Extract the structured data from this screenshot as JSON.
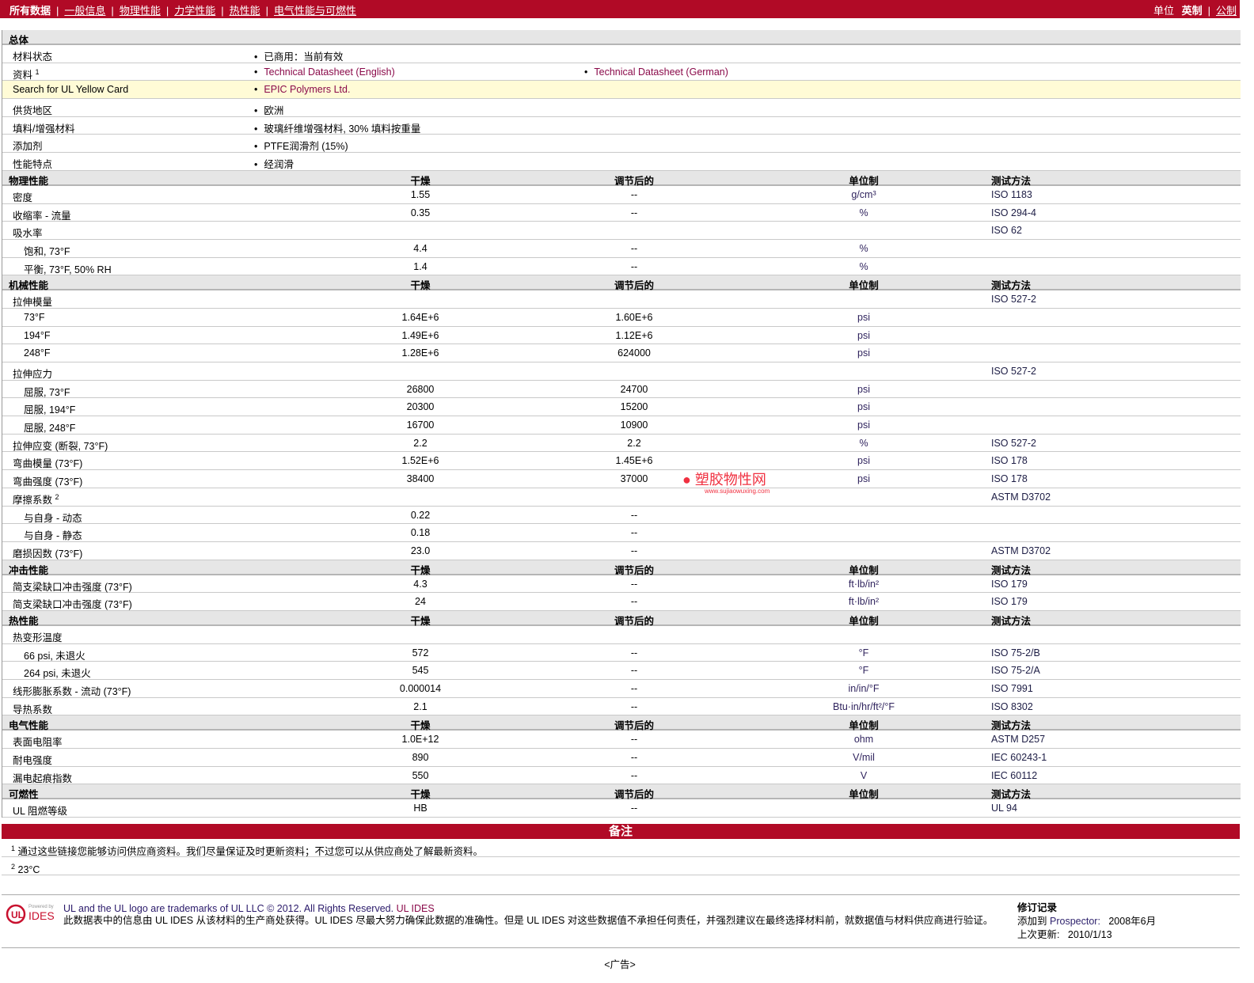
{
  "nav": {
    "active": "所有数据",
    "links": [
      "一般信息",
      "物理性能",
      "力学性能",
      "热性能",
      "电气性能与可燃性"
    ],
    "units_label": "单位",
    "units_active": "英制",
    "units_other": "公制"
  },
  "general": {
    "title": "总体",
    "rows": [
      {
        "label": "材料状态",
        "values": [
          "已商用：当前有效"
        ]
      },
      {
        "label": "资料",
        "sup": "1",
        "values": [
          "Technical Datasheet (English)",
          "Technical Datasheet (German)"
        ],
        "links": true
      },
      {
        "label": "Search for UL Yellow Card",
        "values": [
          "EPIC Polymers Ltd."
        ],
        "links": true,
        "highlight": true
      },
      {
        "label": "供货地区",
        "values": [
          "欧洲"
        ]
      },
      {
        "label": "填料/增强材料",
        "values": [
          "玻璃纤维增强材料, 30% 填料按重量"
        ]
      },
      {
        "label": "添加剂",
        "values": [
          "PTFE润滑剂 (15%)"
        ]
      },
      {
        "label": "性能特点",
        "values": [
          "经润滑"
        ]
      }
    ]
  },
  "columns": {
    "dry": "干燥",
    "cond": "调节后的",
    "unit": "单位制",
    "method": "测试方法"
  },
  "sections": [
    {
      "title": "物理性能",
      "rows": [
        [
          "密度",
          "1.55",
          "--",
          "g/cm³",
          "ISO 1183",
          0
        ],
        [
          "收缩率 - 流量",
          "0.35",
          "--",
          "%",
          "ISO 294-4",
          0
        ],
        [
          "吸水率",
          "",
          "",
          "",
          "ISO 62",
          0
        ],
        [
          "饱和, 73°F",
          "4.4",
          "--",
          "%",
          "",
          1
        ],
        [
          "平衡, 73°F, 50% RH",
          "1.4",
          "--",
          "%",
          "",
          1
        ]
      ]
    },
    {
      "title": "机械性能",
      "rows": [
        [
          "拉伸模量",
          "",
          "",
          "",
          "ISO 527-2",
          0
        ],
        [
          "73°F",
          "1.64E+6",
          "1.60E+6",
          "psi",
          "",
          1
        ],
        [
          "194°F",
          "1.49E+6",
          "1.12E+6",
          "psi",
          "",
          1
        ],
        [
          "248°F",
          "1.28E+6",
          "624000",
          "psi",
          "",
          1
        ],
        [
          "拉伸应力",
          "",
          "",
          "",
          "ISO 527-2",
          0
        ],
        [
          "屈服, 73°F",
          "26800",
          "24700",
          "psi",
          "",
          1
        ],
        [
          "屈服, 194°F",
          "20300",
          "15200",
          "psi",
          "",
          1
        ],
        [
          "屈服, 248°F",
          "16700",
          "10900",
          "psi",
          "",
          1
        ],
        [
          "拉伸应变 (断裂, 73°F)",
          "2.2",
          "2.2",
          "%",
          "ISO 527-2",
          0
        ],
        [
          "弯曲模量 (73°F)",
          "1.52E+6",
          "1.45E+6",
          "psi",
          "ISO 178",
          0
        ],
        [
          "弯曲强度 (73°F)",
          "38400",
          "37000",
          "psi",
          "ISO 178",
          0
        ],
        [
          "摩擦系数",
          "",
          "",
          "",
          "ASTM D3702",
          0,
          "2"
        ],
        [
          "与自身 - 动态",
          "0.22",
          "--",
          "",
          "",
          1
        ],
        [
          "与自身 - 静态",
          "0.18",
          "--",
          "",
          "",
          1
        ],
        [
          "磨损因数 (73°F)",
          "23.0",
          "--",
          "",
          "ASTM D3702",
          0
        ]
      ]
    },
    {
      "title": "冲击性能",
      "rows": [
        [
          "简支梁缺口冲击强度 (73°F)",
          "4.3",
          "--",
          "ft·lb/in²",
          "ISO 179",
          0
        ],
        [
          "简支梁缺口冲击强度 (73°F)",
          "24",
          "--",
          "ft·lb/in²",
          "ISO 179",
          0
        ]
      ]
    },
    {
      "title": "热性能",
      "rows": [
        [
          "热变形温度",
          "",
          "",
          "",
          "",
          0
        ],
        [
          "66 psi, 未退火",
          "572",
          "--",
          "°F",
          "ISO 75-2/B",
          1
        ],
        [
          "264 psi, 未退火",
          "545",
          "--",
          "°F",
          "ISO 75-2/A",
          1
        ],
        [
          "线形膨胀系数 - 流动 (73°F)",
          "0.000014",
          "--",
          "in/in/°F",
          "ISO 7991",
          0
        ],
        [
          "导热系数",
          "2.1",
          "--",
          "Btu·in/hr/ft²/°F",
          "ISO 8302",
          0
        ]
      ]
    },
    {
      "title": "电气性能",
      "rows": [
        [
          "表面电阻率",
          "1.0E+12",
          "--",
          "ohm",
          "ASTM D257",
          0
        ],
        [
          "耐电强度",
          "890",
          "--",
          "V/mil",
          "IEC 60243-1",
          0
        ],
        [
          "漏电起痕指数",
          "550",
          "--",
          "V",
          "IEC 60112",
          0
        ]
      ]
    },
    {
      "title": "可燃性",
      "rows": [
        [
          "UL 阻燃等级",
          "HB",
          "--",
          "",
          "UL 94",
          0
        ]
      ]
    }
  ],
  "notes": {
    "title": "备注",
    "items": [
      {
        "sup": "1",
        "text": "通过这些链接您能够访问供应商资料。我们尽量保证及时更新资料；不过您可以从供应商处了解最新资料。"
      },
      {
        "sup": "2",
        "text": "23°C"
      }
    ]
  },
  "footer": {
    "logo_text": "Powered by UL IDES",
    "line1_a": "UL and the UL logo are trademarks of UL LLC © 2012. All Rights Reserved.",
    "line1_link": "UL IDES",
    "line2": "此数据表中的信息由 UL IDES 从该材料的生产商处获得。UL IDES 尽最大努力确保此数据的准确性。但是 UL IDES 对这些数据值不承担任何责任，并强烈建议在最终选择材料前，就数据值与材料供应商进行验证。",
    "rev_title": "修订记录",
    "added_label": "添加到",
    "added_link": "Prospector:",
    "added_date": "2008年6月",
    "updated_label": "上次更新:",
    "updated_date": "2010/1/13"
  },
  "watermark": {
    "text": "塑胶物性网",
    "url": "www.sujiaowuxing.com"
  },
  "ad": "<广告>",
  "colors": {
    "brand": "#b10a26",
    "header_bg": "#e6e6e6",
    "highlight": "#fffbd6",
    "link": "#8a0a4a"
  }
}
